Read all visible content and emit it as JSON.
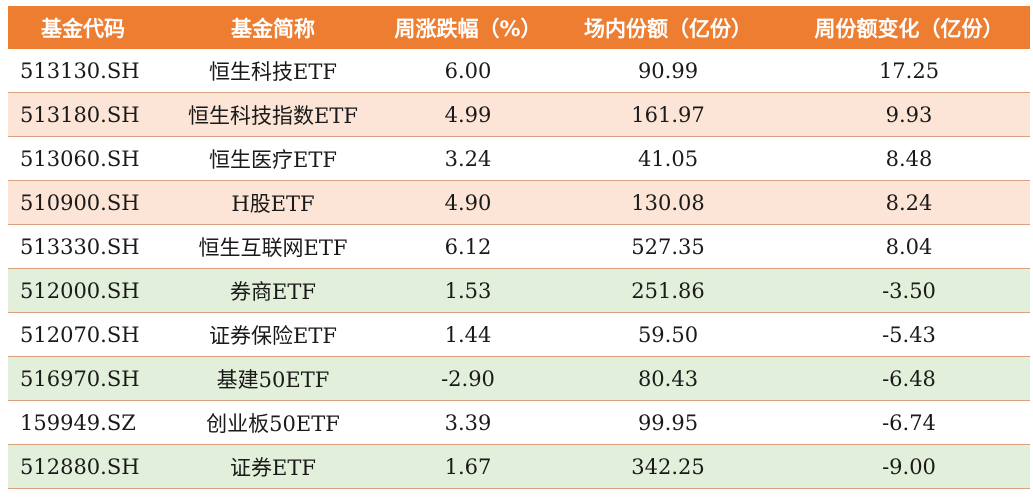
{
  "header": {
    "code": "基金代码",
    "name": "基金简称",
    "weekly_change": "周涨跌幅（%）",
    "shares": "场内份额（亿份）",
    "share_change": "周份额变化（亿份）"
  },
  "colors": {
    "header_bg": "#ED7D31",
    "orange_row": "#FCE4D6",
    "green_row": "#E2EFDA"
  },
  "rows": [
    {
      "code": "513130.SH",
      "name": "恒生科技ETF",
      "weekly_change": "6.00",
      "shares": "90.99",
      "share_change": "17.25",
      "style": "white"
    },
    {
      "code": "513180.SH",
      "name": "恒生科技指数ETF",
      "weekly_change": "4.99",
      "shares": "161.97",
      "share_change": "9.93",
      "style": "orange"
    },
    {
      "code": "513060.SH",
      "name": "恒生医疗ETF",
      "weekly_change": "3.24",
      "shares": "41.05",
      "share_change": "8.48",
      "style": "white"
    },
    {
      "code": "510900.SH",
      "name": "H股ETF",
      "weekly_change": "4.90",
      "shares": "130.08",
      "share_change": "8.24",
      "style": "orange"
    },
    {
      "code": "513330.SH",
      "name": "恒生互联网ETF",
      "weekly_change": "6.12",
      "shares": "527.35",
      "share_change": "8.04",
      "style": "white"
    },
    {
      "code": "512000.SH",
      "name": "券商ETF",
      "weekly_change": "1.53",
      "shares": "251.86",
      "share_change": "-3.50",
      "style": "green"
    },
    {
      "code": "512070.SH",
      "name": "证券保险ETF",
      "weekly_change": "1.44",
      "shares": "59.50",
      "share_change": "-5.43",
      "style": "white"
    },
    {
      "code": "516970.SH",
      "name": "基建50ETF",
      "weekly_change": "-2.90",
      "shares": "80.43",
      "share_change": "-6.48",
      "style": "green"
    },
    {
      "code": "159949.SZ",
      "name": "创业板50ETF",
      "weekly_change": "3.39",
      "shares": "99.95",
      "share_change": "-6.74",
      "style": "white"
    },
    {
      "code": "512880.SH",
      "name": "证券ETF",
      "weekly_change": "1.67",
      "shares": "342.25",
      "share_change": "-9.00",
      "style": "green"
    }
  ]
}
